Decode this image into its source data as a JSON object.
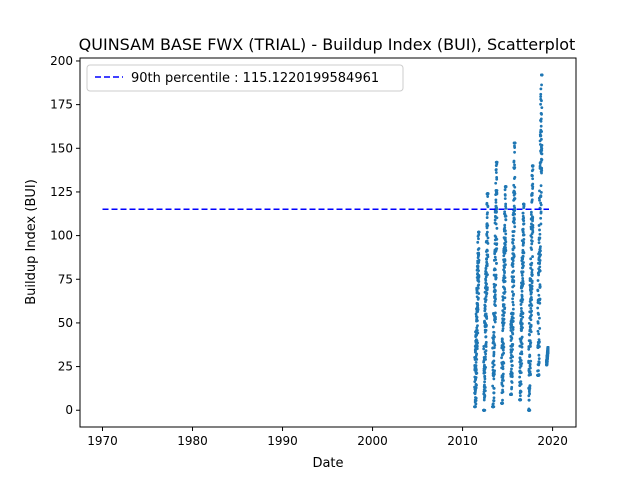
{
  "chart_data": {
    "type": "scatter",
    "title": "QUINSAM BASE FWX (TRIAL) - Buildup Index (BUI), Scatterplot",
    "xlabel": "Date",
    "ylabel": "Buildup Index (BUI)",
    "xlim": [
      1967.5,
      2022.6
    ],
    "ylim": [
      -9.6,
      201.7
    ],
    "xticks": [
      1970,
      1980,
      1990,
      2000,
      2010,
      2020
    ],
    "yticks": [
      0,
      25,
      50,
      75,
      100,
      125,
      150,
      175,
      200
    ],
    "grid": false,
    "legend": {
      "location": "top-left",
      "entries": [
        "90th percentile : 115.1220199584961"
      ]
    },
    "reference_lines": [
      {
        "name": "90th percentile : 115.1220199584961",
        "value": 115.1220199584961,
        "x_range": [
          1970,
          2019.6
        ],
        "style": "dashed",
        "color": "#0000ff"
      }
    ],
    "series": [
      {
        "color": "#1f77b4",
        "seasons": [
          {
            "start": 2011.33,
            "end": 2011.83,
            "peak": 102,
            "min": 2
          },
          {
            "start": 2012.33,
            "end": 2012.83,
            "peak": 124,
            "min": 0
          },
          {
            "start": 2013.33,
            "end": 2013.83,
            "peak": 142,
            "min": 2
          },
          {
            "start": 2014.33,
            "end": 2014.83,
            "peak": 128,
            "min": 4
          },
          {
            "start": 2015.33,
            "end": 2015.83,
            "peak": 153,
            "min": 9
          },
          {
            "start": 2016.33,
            "end": 2016.83,
            "peak": 118,
            "min": 6
          },
          {
            "start": 2017.33,
            "end": 2017.83,
            "peak": 140,
            "min": 0
          },
          {
            "start": 2018.33,
            "end": 2018.83,
            "peak": 192,
            "min": 20
          },
          {
            "start": 2019.33,
            "end": 2019.5,
            "peak": 36,
            "min": 26
          }
        ]
      }
    ]
  }
}
